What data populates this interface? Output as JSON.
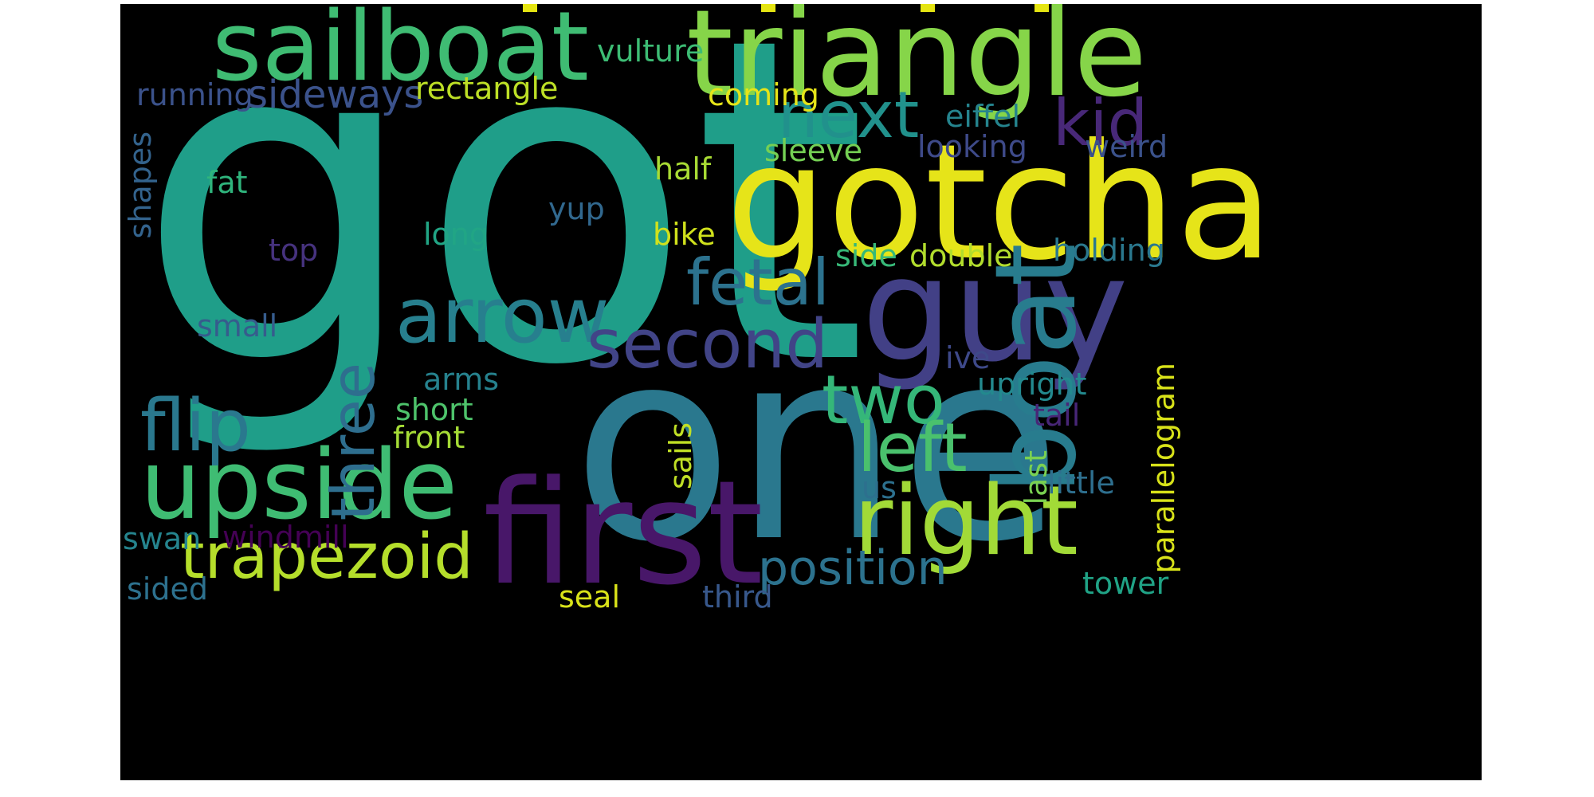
{
  "word_cloud": {
    "background": "#000000",
    "words": [
      {
        "text": "got",
        "color": "#1f9e89"
      },
      {
        "text": "one",
        "color": "#2a788e"
      },
      {
        "text": "gotcha",
        "color": "#e6e419"
      },
      {
        "text": "triangle",
        "color": "#86d549"
      },
      {
        "text": "sailboat",
        "color": "#3fbc73"
      },
      {
        "text": "guy",
        "color": "#424086"
      },
      {
        "text": "first",
        "color": "#481769"
      },
      {
        "text": "boat",
        "color": "#287c8e"
      },
      {
        "text": "right",
        "color": "#a2da37"
      },
      {
        "text": "upside",
        "color": "#3fbc73"
      },
      {
        "text": "arrow",
        "color": "#277f8e"
      },
      {
        "text": "second",
        "color": "#414487"
      },
      {
        "text": "trapezoid",
        "color": "#b5de2b"
      },
      {
        "text": "fetal",
        "color": "#2c728e"
      },
      {
        "text": "next",
        "color": "#21918c"
      },
      {
        "text": "two",
        "color": "#35b779"
      },
      {
        "text": "left",
        "color": "#4ac16d"
      },
      {
        "text": "flip",
        "color": "#2a788e"
      },
      {
        "text": "three",
        "color": "#2e6e8e"
      },
      {
        "text": "kid",
        "color": "#482878"
      },
      {
        "text": "position",
        "color": "#2c728e"
      },
      {
        "text": "sideways",
        "color": "#3b528b"
      },
      {
        "text": "rectangle",
        "color": "#bddf26"
      },
      {
        "text": "running",
        "color": "#3b528b"
      },
      {
        "text": "vulture",
        "color": "#3dbc74"
      },
      {
        "text": "coming",
        "color": "#e6e419"
      },
      {
        "text": "eiffel",
        "color": "#25848e"
      },
      {
        "text": "sleeve",
        "color": "#75d054"
      },
      {
        "text": "looking",
        "color": "#3e4a89"
      },
      {
        "text": "weird",
        "color": "#3b528b"
      },
      {
        "text": "half",
        "color": "#a8db34"
      },
      {
        "text": "fat",
        "color": "#2fb47c"
      },
      {
        "text": "shapes",
        "color": "#33638d"
      },
      {
        "text": "yup",
        "color": "#31688e"
      },
      {
        "text": "long",
        "color": "#21a585"
      },
      {
        "text": "bike",
        "color": "#d0e11c"
      },
      {
        "text": "top",
        "color": "#46327e"
      },
      {
        "text": "side",
        "color": "#37b878"
      },
      {
        "text": "double",
        "color": "#b2dd2d"
      },
      {
        "text": "holding",
        "color": "#2a788e"
      },
      {
        "text": "small",
        "color": "#365c8d"
      },
      {
        "text": "ive",
        "color": "#3e4989"
      },
      {
        "text": "arms",
        "color": "#26828e"
      },
      {
        "text": "upright",
        "color": "#23898e"
      },
      {
        "text": "parallelogram",
        "color": "#d8e219"
      },
      {
        "text": "short",
        "color": "#4ec36b"
      },
      {
        "text": "tail",
        "color": "#482677"
      },
      {
        "text": "front",
        "color": "#a5db36"
      },
      {
        "text": "sails",
        "color": "#c0df25"
      },
      {
        "text": "last",
        "color": "#7ad151"
      },
      {
        "text": "us",
        "color": "#2d708e"
      },
      {
        "text": "little",
        "color": "#2e6f8e"
      },
      {
        "text": "swan",
        "color": "#25848e"
      },
      {
        "text": "windmill",
        "color": "#440154"
      },
      {
        "text": "sided",
        "color": "#2d718e"
      },
      {
        "text": "seal",
        "color": "#d8e219"
      },
      {
        "text": "third",
        "color": "#38588c"
      },
      {
        "text": "tower",
        "color": "#20a386"
      }
    ]
  }
}
